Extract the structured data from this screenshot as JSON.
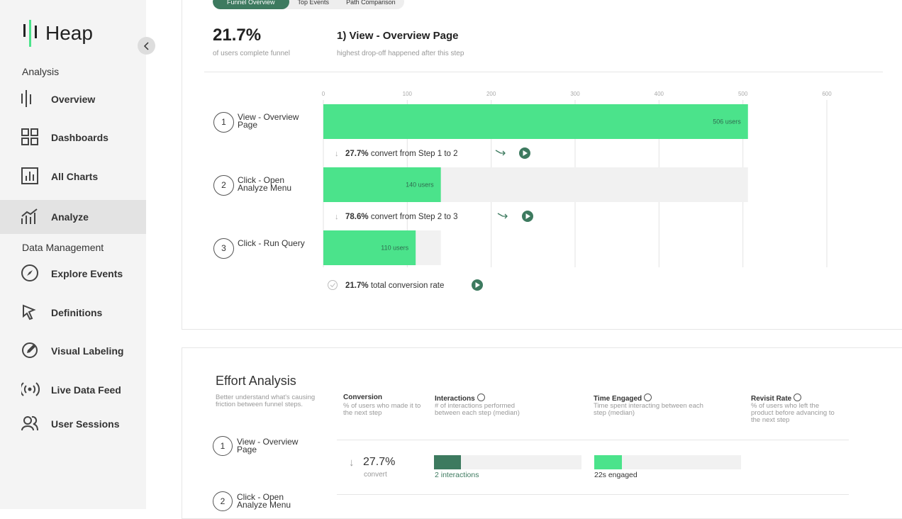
{
  "sidebar": {
    "logo": "Heap",
    "sections": [
      {
        "title": "Analysis",
        "items": [
          "Overview",
          "Dashboards",
          "All Charts",
          "Analyze"
        ]
      },
      {
        "title": "Data Management",
        "items": [
          "Explore Events",
          "Definitions",
          "Visual Labeling",
          "Live Data Feed",
          "User Sessions"
        ]
      }
    ]
  },
  "tabs": [
    "Funnel Overview",
    "Top Events",
    "Path Comparison"
  ],
  "summary": {
    "rate": "21.7%",
    "rate_caption": "of users complete funnel",
    "step": "1) View - Overview Page",
    "step_caption": "highest drop-off happened after this step"
  },
  "funnel": {
    "xlim": [
      0,
      600
    ],
    "xticks": [
      0,
      100,
      200,
      300,
      400,
      500,
      600
    ],
    "steps": [
      {
        "number": "1",
        "label": "View - Overview Page",
        "users": 506,
        "users_label": "506 users"
      },
      {
        "number": "2",
        "label": "Click - Open Analyze Menu",
        "users": 140,
        "users_label": "140 users"
      },
      {
        "number": "3",
        "label": "Click - Run Query",
        "users": 110,
        "users_label": "110 users"
      }
    ],
    "conversions": [
      {
        "rate": "27.7%",
        "text": "convert from Step 1 to 2"
      },
      {
        "rate": "78.6%",
        "text": "convert from Step 2 to 3"
      }
    ],
    "total": {
      "rate": "21.7%",
      "text": "total conversion rate"
    }
  },
  "effort": {
    "title": "Effort Analysis",
    "description": "Better understand what's causing friction between funnel steps.",
    "columns": [
      {
        "title": "Conversion",
        "description": "% of users who made it to the next step"
      },
      {
        "title": "Interactions",
        "description": "# of interactions performed between each step (median)"
      },
      {
        "title": "Time Engaged",
        "description": "Time spent interacting between each step (median)"
      },
      {
        "title": "Revisit Rate",
        "description": "% of users who left the product before advancing to the next step"
      }
    ],
    "steps": [
      {
        "number": "1",
        "label": "View - Overview Page"
      },
      {
        "number": "2",
        "label": "Click - Open Analyze Menu"
      }
    ],
    "rows": [
      {
        "conversion": "27.7%",
        "conversion_caption": "convert",
        "interactions": "2 interactions",
        "time_engaged": "22s engaged"
      }
    ]
  }
}
